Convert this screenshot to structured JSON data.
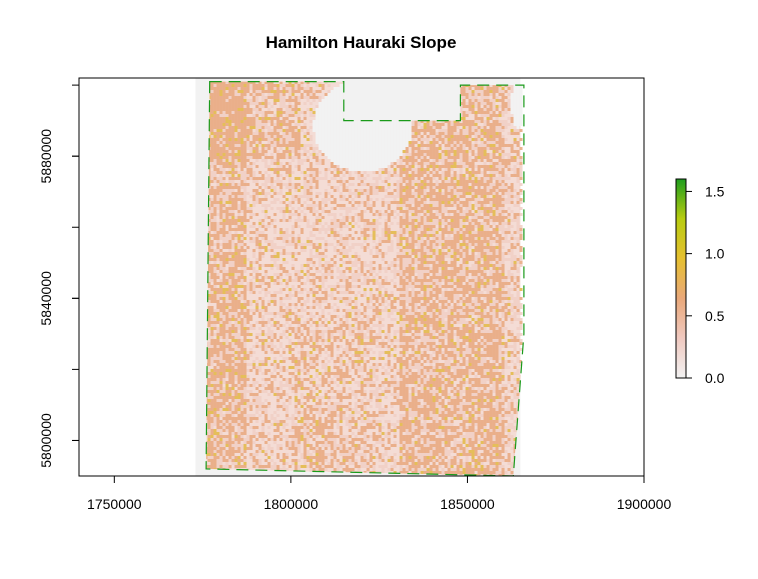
{
  "chart_data": {
    "type": "heatmap",
    "title": "Hamilton Hauraki Slope",
    "xlabel": "",
    "ylabel": "",
    "xlim": [
      1740000,
      1900000
    ],
    "ylim": [
      5790000,
      5902000
    ],
    "x_ticks": [
      1750000,
      1800000,
      1850000,
      1900000
    ],
    "y_ticks": [
      5800000,
      5840000,
      5880000
    ],
    "x_tick_labels": [
      "1750000",
      "1800000",
      "1850000",
      "1900000"
    ],
    "y_tick_labels": [
      "5800000",
      "5840000",
      "5880000"
    ],
    "raster_extent": {
      "x": [
        1773000,
        1865000
      ],
      "y": [
        5790000,
        5902000
      ]
    },
    "boundary_polygon": [
      [
        1777000,
        5901000
      ],
      [
        1815000,
        5901000
      ],
      [
        1815000,
        5890000
      ],
      [
        1848000,
        5890000
      ],
      [
        1848000,
        5900000
      ],
      [
        1866000,
        5900000
      ],
      [
        1866000,
        5830000
      ],
      [
        1863000,
        5790000
      ],
      [
        1776000,
        5792000
      ]
    ],
    "data_holes": [
      {
        "cx": 1820000,
        "cy": 5889000,
        "rx": 14000,
        "ry": 13000
      },
      {
        "cx": 1864000,
        "cy": 5895000,
        "rx": 2000,
        "ry": 7000
      }
    ],
    "colorbar": {
      "range": [
        0.0,
        1.6
      ],
      "ticks": [
        0.0,
        0.5,
        1.0,
        1.5
      ],
      "tick_labels": [
        "0.0",
        "0.5",
        "1.0",
        "1.5"
      ],
      "colors": [
        "#f2f2f2",
        "#f0c9c0",
        "#e9a87a",
        "#e6c030",
        "#b8cc10",
        "#1e9e1e"
      ]
    },
    "colors": {
      "raster_background": "#f2f2f2",
      "low_slope": "#f0cfc4",
      "mid_slope": "#e8a77c",
      "high_slope": "#e2b843",
      "boundary_line": "#1a9a1a"
    },
    "legend_placement": "right",
    "grid": false
  }
}
